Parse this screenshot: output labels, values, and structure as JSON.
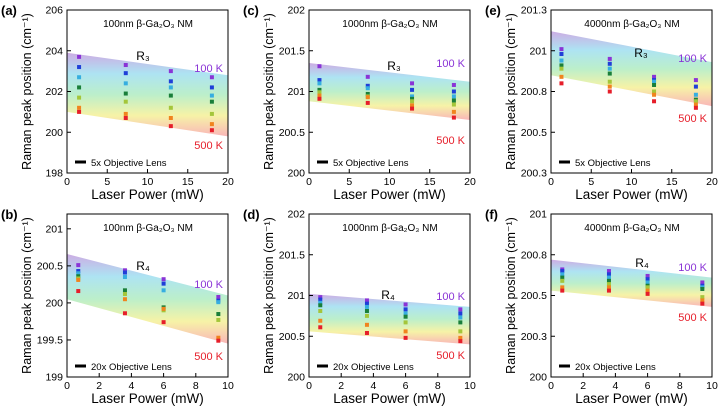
{
  "colors": {
    "series": [
      "#8a34d6",
      "#1f3fd8",
      "#36aee0",
      "#1a7f3a",
      "#a4c63a",
      "#f0841e",
      "#e61e2a"
    ],
    "band_gradient": [
      "#caa8e2",
      "#a9e2f2",
      "#b8eec8",
      "#f6f2a2",
      "#f9b2b4"
    ],
    "label_100K": "#8a34d6",
    "label_500K": "#e61e2a"
  },
  "chart_data": [
    {
      "id": "a",
      "panel_label": "(a)",
      "type": "scatter",
      "title": "100nm β-Ga₂O₃ NM",
      "peak": "R₃",
      "xlabel": "Laser Power (mW)",
      "ylabel": "Raman peak position (cm⁻¹)",
      "xlim": [
        0,
        20
      ],
      "ylim": [
        198,
        206
      ],
      "xticks": [
        0,
        5,
        10,
        15,
        20
      ],
      "xtick_labels": [
        "0",
        "5",
        "10",
        "15",
        "20"
      ],
      "yticks": [
        198,
        200,
        202,
        204,
        206
      ],
      "ytick_labels": [
        "198",
        "200",
        "202",
        "204",
        "206"
      ],
      "legend": "5x Objective Lens",
      "label_high": "100 K",
      "label_low": "500 K",
      "x": [
        1.5,
        7.3,
        12.9,
        18.0
      ],
      "series": [
        {
          "values": [
            203.7,
            203.3,
            203.0,
            202.7
          ]
        },
        {
          "values": [
            203.2,
            202.9,
            202.5,
            202.2
          ]
        },
        {
          "values": [
            202.7,
            202.4,
            202.2,
            201.8
          ]
        },
        {
          "values": [
            202.2,
            201.9,
            201.8,
            201.5
          ]
        },
        {
          "values": [
            201.7,
            201.5,
            201.2,
            200.9
          ]
        },
        {
          "values": [
            201.2,
            200.9,
            200.7,
            200.4
          ]
        },
        {
          "values": [
            201.0,
            200.7,
            200.3,
            200.1
          ]
        }
      ],
      "band": {
        "upper": [
          203.9,
          202.8
        ],
        "lower": [
          201.0,
          199.8
        ]
      }
    },
    {
      "id": "c",
      "panel_label": "(c)",
      "type": "scatter",
      "title": "1000nm β-Ga₂O₃ NM",
      "peak": "R₃",
      "xlabel": "Laser Power (mW)",
      "ylabel": "Raman peak position (cm⁻¹)",
      "xlim": [
        0,
        20
      ],
      "ylim": [
        200,
        202
      ],
      "xticks": [
        0,
        5,
        10,
        15,
        20
      ],
      "xtick_labels": [
        "0",
        "5",
        "10",
        "15",
        "20"
      ],
      "yticks": [
        200,
        200.5,
        201,
        201.5,
        202
      ],
      "ytick_labels": [
        "200",
        "200.5",
        "201",
        "201.5",
        "202"
      ],
      "legend": "5x Objective Lens",
      "label_high": "100 K",
      "label_low": "500 K",
      "x": [
        1.3,
        7.3,
        12.8,
        18.0
      ],
      "series": [
        {
          "values": [
            201.31,
            201.18,
            201.1,
            201.08
          ]
        },
        {
          "values": [
            201.14,
            201.07,
            201.02,
            201.0
          ]
        },
        {
          "values": [
            201.1,
            201.04,
            200.94,
            200.94
          ]
        },
        {
          "values": [
            201.02,
            200.97,
            200.91,
            200.89
          ]
        },
        {
          "values": [
            200.99,
            200.94,
            200.88,
            200.84
          ]
        },
        {
          "values": [
            200.95,
            200.93,
            200.83,
            200.75
          ]
        },
        {
          "values": [
            200.91,
            200.86,
            200.79,
            200.68
          ]
        }
      ],
      "band": {
        "upper": [
          201.35,
          201.12
        ],
        "lower": [
          200.88,
          200.65
        ]
      }
    },
    {
      "id": "e",
      "panel_label": "(e)",
      "type": "scatter",
      "title": "4000nm β-Ga₂O₃ NM",
      "peak": "R₃",
      "xlabel": "Laser Power (mW)",
      "ylabel": "Raman peak position (cm⁻¹)",
      "xlim": [
        0,
        20
      ],
      "ylim": [
        200.25,
        201.25
      ],
      "xticks": [
        0,
        5,
        10,
        15,
        20
      ],
      "xtick_labels": [
        "0",
        "5",
        "10",
        "15",
        "20"
      ],
      "yticks": [
        200.25,
        200.5,
        200.75,
        201,
        201.25
      ],
      "ytick_labels": [
        "200.3",
        "200.5",
        "200.8",
        "201",
        "201.3"
      ],
      "legend": "5x Objective Lens",
      "label_high": "100 K",
      "label_low": "500 K",
      "x": [
        1.3,
        7.3,
        12.8,
        18.0
      ],
      "series": [
        {
          "values": [
            201.01,
            200.95,
            200.84,
            200.82
          ]
        },
        {
          "values": [
            200.98,
            200.92,
            200.82,
            200.78
          ]
        },
        {
          "values": [
            200.94,
            200.89,
            200.81,
            200.73
          ]
        },
        {
          "values": [
            200.91,
            200.86,
            200.79,
            200.7
          ]
        },
        {
          "values": [
            200.89,
            200.81,
            200.75,
            200.69
          ]
        },
        {
          "values": [
            200.84,
            200.78,
            200.73,
            200.67
          ]
        },
        {
          "values": [
            200.8,
            200.75,
            200.69,
            200.65
          ]
        }
      ],
      "band": {
        "upper": [
          201.12,
          200.93
        ],
        "lower": [
          200.85,
          200.66
        ]
      }
    },
    {
      "id": "b",
      "panel_label": "(b)",
      "type": "scatter",
      "title": "100nm β-Ga₂O₃ NM",
      "peak": "R₄",
      "xlabel": "Laser Power (mW)",
      "ylabel": "Raman peak position (cm⁻¹)",
      "xlim": [
        0,
        10
      ],
      "ylim": [
        199,
        201.2
      ],
      "xticks": [
        0,
        2,
        4,
        6,
        8,
        10
      ],
      "xtick_labels": [
        "0",
        "2",
        "4",
        "6",
        "8",
        "10"
      ],
      "yticks": [
        199,
        199.5,
        200,
        200.5,
        201
      ],
      "ytick_labels": [
        "199",
        "199.5",
        "200",
        "200.5",
        "201"
      ],
      "legend": "20x Objective Lens",
      "label_high": "100 K",
      "label_low": "500 K",
      "x": [
        0.7,
        3.6,
        6.0,
        9.4
      ],
      "series": [
        {
          "values": [
            200.51,
            200.44,
            200.32,
            200.08
          ]
        },
        {
          "values": [
            200.43,
            200.41,
            200.26,
            200.03
          ]
        },
        {
          "values": [
            200.4,
            200.35,
            200.17,
            200.01
          ]
        },
        {
          "values": [
            200.36,
            200.17,
            199.94,
            199.85
          ]
        },
        {
          "values": [
            200.33,
            200.12,
            199.9,
            199.77
          ]
        },
        {
          "values": [
            200.31,
            200.05,
            199.92,
            199.53
          ]
        },
        {
          "values": [
            200.16,
            199.86,
            199.74,
            199.49
          ]
        }
      ],
      "band": {
        "upper": [
          200.66,
          200.1
        ],
        "lower": [
          200.05,
          199.45
        ]
      }
    },
    {
      "id": "d",
      "panel_label": "(d)",
      "type": "scatter",
      "title": "1000nm β-Ga₂O₃ NM",
      "peak": "R₄",
      "xlabel": "Laser Power (mW)",
      "ylabel": "Raman peak position (cm⁻¹)",
      "xlim": [
        0,
        10
      ],
      "ylim": [
        200,
        202
      ],
      "xticks": [
        0,
        2,
        4,
        6,
        8,
        10
      ],
      "xtick_labels": [
        "0",
        "2",
        "4",
        "6",
        "8",
        "10"
      ],
      "yticks": [
        200,
        200.5,
        201,
        201.5,
        202
      ],
      "ytick_labels": [
        "200",
        "200.5",
        "201",
        "201.5",
        "202"
      ],
      "legend": "20x Objective Lens",
      "label_high": "100 K",
      "label_low": "500 K",
      "x": [
        0.7,
        3.6,
        6.0,
        9.4
      ],
      "series": [
        {
          "values": [
            200.98,
            200.94,
            200.89,
            200.83
          ]
        },
        {
          "values": [
            200.95,
            200.9,
            200.83,
            200.78
          ]
        },
        {
          "values": [
            200.91,
            200.86,
            200.78,
            200.73
          ]
        },
        {
          "values": [
            200.88,
            200.81,
            200.74,
            200.67
          ]
        },
        {
          "values": [
            200.81,
            200.75,
            200.67,
            200.56
          ]
        },
        {
          "values": [
            200.69,
            200.64,
            200.56,
            200.48
          ]
        },
        {
          "values": [
            200.61,
            200.54,
            200.48,
            200.44
          ]
        }
      ],
      "band": {
        "upper": [
          201.02,
          200.86
        ],
        "lower": [
          200.56,
          200.4
        ]
      }
    },
    {
      "id": "f",
      "panel_label": "(f)",
      "type": "scatter",
      "title": "4000nm β-Ga₂O₃ NM",
      "peak": "R₄",
      "xlabel": "Laser Power (mW)",
      "ylabel": "Raman peak position (cm⁻¹)",
      "xlim": [
        0,
        10
      ],
      "ylim": [
        200,
        201
      ],
      "xticks": [
        0,
        2,
        4,
        6,
        8,
        10
      ],
      "xtick_labels": [
        "0",
        "2",
        "4",
        "6",
        "8",
        "10"
      ],
      "yticks": [
        200,
        200.25,
        200.5,
        200.75,
        201
      ],
      "ytick_labels": [
        "200",
        "200.3",
        "200.5",
        "200.8",
        "201"
      ],
      "legend": "20x Objective Lens",
      "label_high": "100 K",
      "label_low": "500 K",
      "x": [
        0.7,
        3.6,
        6.0,
        9.4
      ],
      "series": [
        {
          "values": [
            200.66,
            200.65,
            200.62,
            200.58
          ]
        },
        {
          "values": [
            200.65,
            200.63,
            200.6,
            200.56
          ]
        },
        {
          "values": [
            200.63,
            200.61,
            200.58,
            200.55
          ]
        },
        {
          "values": [
            200.61,
            200.59,
            200.56,
            200.54
          ]
        },
        {
          "values": [
            200.59,
            200.57,
            200.55,
            200.49
          ]
        },
        {
          "values": [
            200.55,
            200.55,
            200.53,
            200.47
          ]
        },
        {
          "values": [
            200.53,
            200.53,
            200.51,
            200.45
          ]
        }
      ],
      "band": {
        "upper": [
          200.72,
          200.61
        ],
        "lower": [
          200.53,
          200.43
        ]
      }
    }
  ]
}
